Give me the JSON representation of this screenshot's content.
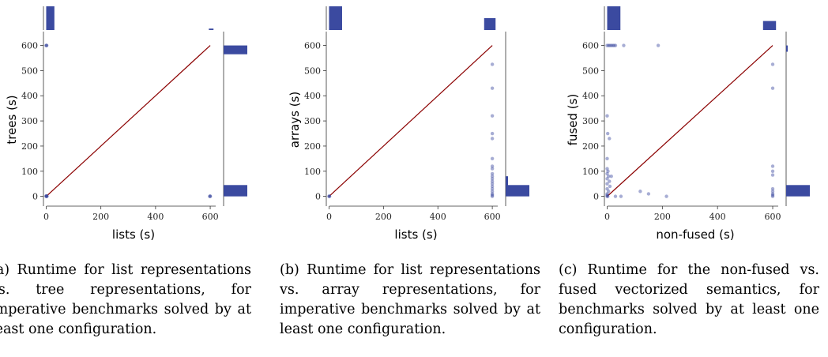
{
  "captions": [
    "(a) Runtime for list representations vs. tree representations, for imperative benchmarks solved by at least one configuration.",
    "(b) Runtime for list representations vs. array representations, for imperative benchmarks solved by at least one configuration.",
    "(c) Runtime for the non-fused vs. fused vectorized semantics, for benchmarks solved by at least one configuration."
  ],
  "colors": {
    "point": "#3b4aa0",
    "hist": "#3b4aa0",
    "diagonal": "#8b0000",
    "axis": "#333333"
  },
  "chart_data": [
    {
      "type": "scatter",
      "xlabel": "lists (s)",
      "ylabel": "trees (s)",
      "xlim": [
        -10,
        620
      ],
      "ylim": [
        -20,
        630
      ],
      "xticks": [
        0,
        200,
        400,
        600
      ],
      "yticks": [
        0,
        100,
        200,
        300,
        400,
        500,
        600
      ],
      "diagonal": [
        [
          0,
          0
        ],
        [
          600,
          600
        ]
      ],
      "points": [
        [
          0,
          0
        ],
        [
          1,
          1
        ],
        [
          2,
          0
        ],
        [
          0,
          2
        ],
        [
          1,
          0
        ],
        [
          3,
          1
        ],
        [
          0,
          600
        ],
        [
          1,
          600
        ],
        [
          2,
          600
        ],
        [
          600,
          0
        ],
        [
          600,
          1
        ],
        [
          598,
          0
        ]
      ],
      "top_hist": {
        "bins": [
          [
            0,
            30
          ],
          [
            595,
            612
          ]
        ],
        "counts": [
          1.0,
          0.06
        ]
      },
      "right_hist": {
        "bins": [
          [
            0,
            45
          ],
          [
            565,
            600
          ]
        ],
        "counts": [
          1.0,
          1.0
        ]
      }
    },
    {
      "type": "scatter",
      "xlabel": "lists (s)",
      "ylabel": "arrays (s)",
      "xlim": [
        -10,
        620
      ],
      "ylim": [
        -20,
        630
      ],
      "xticks": [
        0,
        200,
        400,
        600
      ],
      "yticks": [
        0,
        100,
        200,
        300,
        400,
        500,
        600
      ],
      "diagonal": [
        [
          0,
          0
        ],
        [
          600,
          600
        ]
      ],
      "points": [
        [
          0,
          0
        ],
        [
          1,
          1
        ],
        [
          2,
          0
        ],
        [
          600,
          525
        ],
        [
          600,
          430
        ],
        [
          600,
          320
        ],
        [
          600,
          250
        ],
        [
          600,
          230
        ],
        [
          600,
          150
        ],
        [
          600,
          120
        ],
        [
          600,
          110
        ],
        [
          600,
          90
        ],
        [
          600,
          80
        ],
        [
          600,
          70
        ],
        [
          600,
          60
        ],
        [
          600,
          50
        ],
        [
          600,
          40
        ],
        [
          600,
          30
        ],
        [
          600,
          20
        ],
        [
          600,
          10
        ],
        [
          600,
          5
        ],
        [
          600,
          0
        ]
      ],
      "top_hist": {
        "bins": [
          [
            0,
            48
          ],
          [
            570,
            612
          ]
        ],
        "counts": [
          1.0,
          0.5
        ]
      },
      "right_hist": {
        "bins": [
          [
            0,
            45
          ],
          [
            40,
            80
          ]
        ],
        "counts": [
          1.0,
          0.1
        ]
      }
    },
    {
      "type": "scatter",
      "xlabel": "non-fused (s)",
      "ylabel": "fused (s)",
      "xlim": [
        -10,
        620
      ],
      "ylim": [
        -20,
        630
      ],
      "xticks": [
        0,
        200,
        400,
        600
      ],
      "yticks": [
        0,
        100,
        200,
        300,
        400,
        500,
        600
      ],
      "diagonal": [
        [
          0,
          0
        ],
        [
          600,
          600
        ]
      ],
      "points": [
        [
          0,
          600
        ],
        [
          5,
          600
        ],
        [
          10,
          600
        ],
        [
          15,
          600
        ],
        [
          20,
          600
        ],
        [
          25,
          600
        ],
        [
          30,
          600
        ],
        [
          60,
          600
        ],
        [
          185,
          600
        ],
        [
          0,
          320
        ],
        [
          2,
          250
        ],
        [
          8,
          230
        ],
        [
          0,
          150
        ],
        [
          0,
          110
        ],
        [
          3,
          100
        ],
        [
          0,
          90
        ],
        [
          5,
          80
        ],
        [
          15,
          80
        ],
        [
          0,
          70
        ],
        [
          8,
          60
        ],
        [
          0,
          50
        ],
        [
          10,
          40
        ],
        [
          0,
          30
        ],
        [
          5,
          20
        ],
        [
          0,
          10
        ],
        [
          0,
          5
        ],
        [
          0,
          0
        ],
        [
          2,
          0
        ],
        [
          30,
          0
        ],
        [
          50,
          0
        ],
        [
          120,
          20
        ],
        [
          150,
          10
        ],
        [
          215,
          0
        ],
        [
          600,
          525
        ],
        [
          600,
          430
        ],
        [
          600,
          120
        ],
        [
          600,
          100
        ],
        [
          600,
          85
        ],
        [
          600,
          30
        ],
        [
          600,
          20
        ],
        [
          600,
          10
        ],
        [
          600,
          5
        ],
        [
          600,
          0
        ]
      ],
      "top_hist": {
        "bins": [
          [
            0,
            48
          ],
          [
            565,
            612
          ]
        ],
        "counts": [
          1.0,
          0.38
        ]
      },
      "right_hist": {
        "bins": [
          [
            0,
            45
          ],
          [
            575,
            600
          ]
        ],
        "counts": [
          1.0,
          0.05
        ]
      }
    }
  ]
}
